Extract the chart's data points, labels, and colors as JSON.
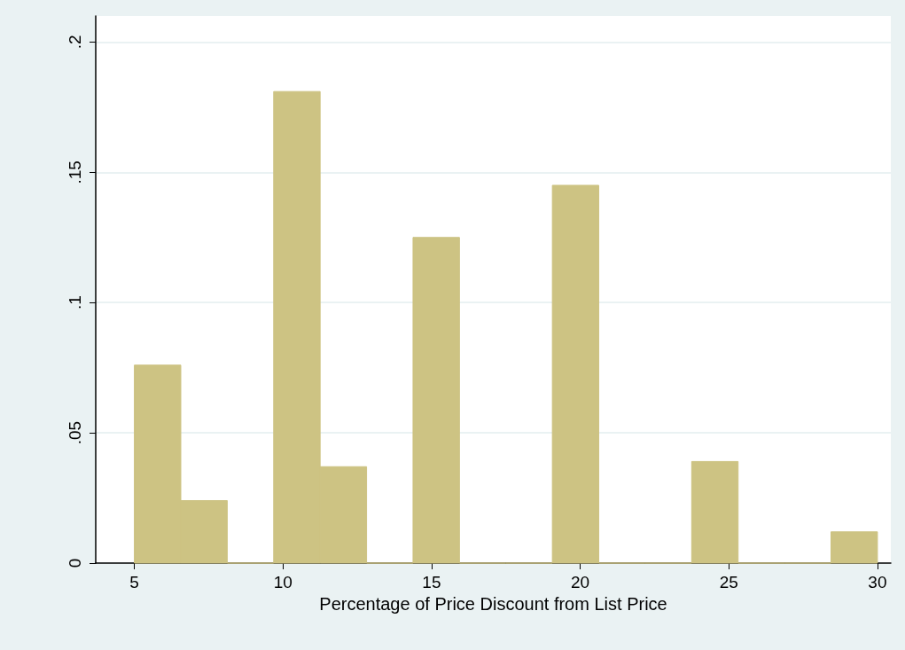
{
  "chart_data": {
    "type": "histogram",
    "xlabel": "Percentage of Price Discount from List Price",
    "bins": [
      5,
      6.5625,
      8.125,
      9.6875,
      11.25,
      12.8125,
      14.375,
      15.9375,
      17.5,
      19.0625,
      20.625,
      22.1875,
      23.75,
      25.3125,
      26.875,
      28.4375,
      30
    ],
    "values": [
      0.076,
      0.024,
      0,
      0.181,
      0.037,
      0,
      0.125,
      0,
      0,
      0.145,
      0,
      0,
      0.039,
      0,
      0,
      0.012
    ],
    "color": "#cdc383",
    "xlim": [
      3.7,
      30.45
    ],
    "xticks": [
      5,
      10,
      15,
      20,
      25,
      30
    ],
    "ylim": [
      0,
      0.21
    ],
    "yticks": [
      {
        "value": 0,
        "label": "0"
      },
      {
        "value": 0.05,
        "label": ".05"
      },
      {
        "value": 0.1,
        "label": ".1"
      },
      {
        "value": 0.15,
        "label": ".15"
      },
      {
        "value": 0.2,
        "label": ".2"
      }
    ],
    "grid": "y"
  }
}
